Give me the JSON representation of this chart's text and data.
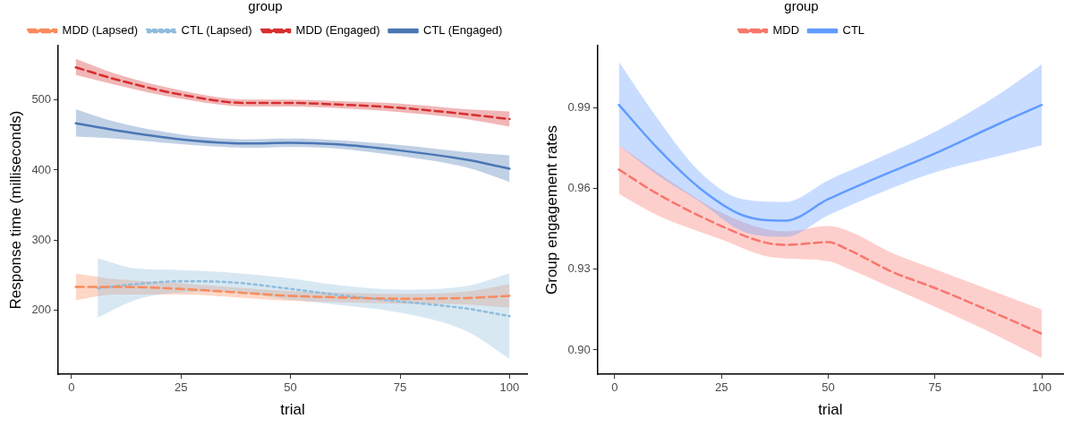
{
  "chart_data": [
    {
      "type": "line",
      "xlabel": "trial",
      "ylabel": "Response time (milliseconds)",
      "legend_title": "group",
      "legend": "top",
      "xlim": [
        -3,
        104
      ],
      "xticks": [
        0,
        25,
        50,
        75,
        100
      ],
      "ylim": [
        108,
        578
      ],
      "yticks": [
        200,
        300,
        400,
        500
      ],
      "series": [
        {
          "name": "CTL (Engaged)",
          "color": "#4a77b4",
          "line_style": "solid",
          "x": [
            1,
            10,
            25,
            40,
            50,
            60,
            75,
            90,
            100
          ],
          "values": [
            467,
            457,
            444,
            438,
            439,
            437,
            428,
            415,
            402
          ],
          "lower": [
            448,
            445,
            437,
            432,
            433,
            431,
            420,
            404,
            383
          ],
          "upper": [
            487,
            469,
            451,
            444,
            445,
            443,
            436,
            426,
            421
          ]
        },
        {
          "name": "MDD (Engaged)",
          "color": "#d62f2f",
          "line_style": "dashed",
          "x": [
            1,
            10,
            25,
            40,
            50,
            60,
            75,
            90,
            100
          ],
          "values": [
            547,
            530,
            508,
            496,
            496,
            494,
            489,
            480,
            473
          ],
          "lower": [
            536,
            522,
            502,
            491,
            491,
            489,
            483,
            473,
            462
          ],
          "upper": [
            559,
            538,
            514,
            501,
            501,
            499,
            495,
            487,
            484
          ]
        },
        {
          "name": "CTL (Lapsed)",
          "color": "#8fbcdc",
          "line_style": "dotted",
          "x": [
            6,
            15,
            25,
            35,
            50,
            60,
            75,
            90,
            100
          ],
          "values": [
            231,
            237,
            241,
            240,
            230,
            222,
            212,
            202,
            191
          ],
          "lower": [
            189,
            215,
            225,
            226,
            215,
            208,
            196,
            170,
            130
          ],
          "upper": [
            274,
            259,
            257,
            254,
            245,
            236,
            229,
            234,
            252
          ]
        },
        {
          "name": "MDD (Lapsed)",
          "color": "#f98b5b",
          "line_style": "dashed",
          "x": [
            1,
            10,
            25,
            40,
            50,
            60,
            75,
            90,
            100
          ],
          "values": [
            233,
            233,
            230,
            224,
            220,
            218,
            216,
            217,
            220
          ],
          "lower": [
            214,
            222,
            222,
            217,
            213,
            211,
            209,
            208,
            203
          ],
          "upper": [
            252,
            244,
            238,
            231,
            227,
            225,
            223,
            226,
            237
          ]
        }
      ]
    },
    {
      "type": "line",
      "xlabel": "trial",
      "ylabel": "Group engagement rates",
      "legend_title": "group",
      "legend": "top",
      "xlim": [
        -4,
        105
      ],
      "xticks": [
        0,
        25,
        50,
        75,
        100
      ],
      "ylim": [
        0.891,
        1.013
      ],
      "yticks": [
        {
          "value": 0.9,
          "label": "0.90"
        },
        0.93,
        0.96,
        0.99
      ],
      "series": [
        {
          "name": "CTL",
          "color": "#619cff",
          "line_style": "solid",
          "x": [
            1,
            10,
            20,
            30,
            40,
            50,
            60,
            75,
            90,
            100
          ],
          "values": [
            0.991,
            0.975,
            0.96,
            0.95,
            0.948,
            0.956,
            0.963,
            0.973,
            0.984,
            0.991
          ],
          "lower": [
            0.976,
            0.965,
            0.955,
            0.944,
            0.942,
            0.95,
            0.957,
            0.966,
            0.972,
            0.976
          ],
          "upper": [
            1.007,
            0.986,
            0.966,
            0.956,
            0.955,
            0.963,
            0.97,
            0.981,
            0.995,
            1.006
          ]
        },
        {
          "name": "MDD",
          "color": "#f8766d",
          "line_style": "dashed",
          "x": [
            1,
            10,
            25,
            35,
            40,
            50,
            55,
            65,
            75,
            90,
            100
          ],
          "values": [
            0.967,
            0.958,
            0.946,
            0.94,
            0.939,
            0.94,
            0.937,
            0.929,
            0.923,
            0.913,
            0.906
          ],
          "lower": [
            0.958,
            0.95,
            0.941,
            0.935,
            0.934,
            0.933,
            0.93,
            0.923,
            0.916,
            0.905,
            0.897
          ],
          "upper": [
            0.976,
            0.966,
            0.951,
            0.945,
            0.944,
            0.946,
            0.944,
            0.936,
            0.93,
            0.921,
            0.915
          ]
        }
      ]
    }
  ]
}
